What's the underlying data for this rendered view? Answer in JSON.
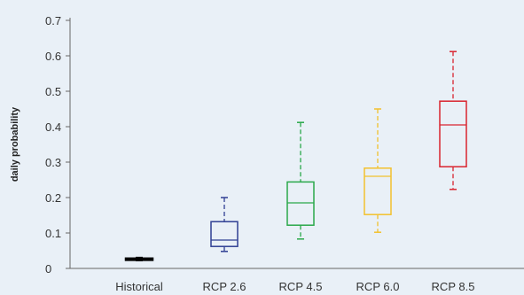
{
  "chart_data": {
    "type": "box",
    "title": "",
    "xlabel": "",
    "ylabel": "daily probability",
    "ylim": [
      0,
      0.7
    ],
    "yticks": [
      0,
      0.1,
      0.2,
      0.3,
      0.4,
      0.5,
      0.6,
      0.7
    ],
    "ytick_labels": [
      "0",
      "0.1",
      "0.2",
      "0.3",
      "0.4",
      "0.5",
      "0.6",
      "0.7"
    ],
    "grid": false,
    "legend": "none",
    "categories": [
      "Historical",
      "RCP 2.6",
      "RCP 4.5",
      "RCP 6.0",
      "RCP 8.5"
    ],
    "series": [
      {
        "category": "Historical",
        "min": 0.022,
        "q1": 0.024,
        "median": 0.026,
        "q3": 0.028,
        "max": 0.031,
        "color": "#000000"
      },
      {
        "category": "RCP 2.6",
        "min": 0.048,
        "q1": 0.062,
        "median": 0.08,
        "q3": 0.132,
        "max": 0.2,
        "color": "#2f3f93"
      },
      {
        "category": "RCP 4.5",
        "min": 0.083,
        "q1": 0.122,
        "median": 0.185,
        "q3": 0.244,
        "max": 0.412,
        "color": "#2aa84a"
      },
      {
        "category": "RCP 6.0",
        "min": 0.102,
        "q1": 0.152,
        "median": 0.26,
        "q3": 0.283,
        "max": 0.45,
        "color": "#f2c12e"
      },
      {
        "category": "RCP 8.5",
        "min": 0.223,
        "q1": 0.287,
        "median": 0.405,
        "q3": 0.472,
        "max": 0.612,
        "color": "#d9242f"
      }
    ]
  }
}
